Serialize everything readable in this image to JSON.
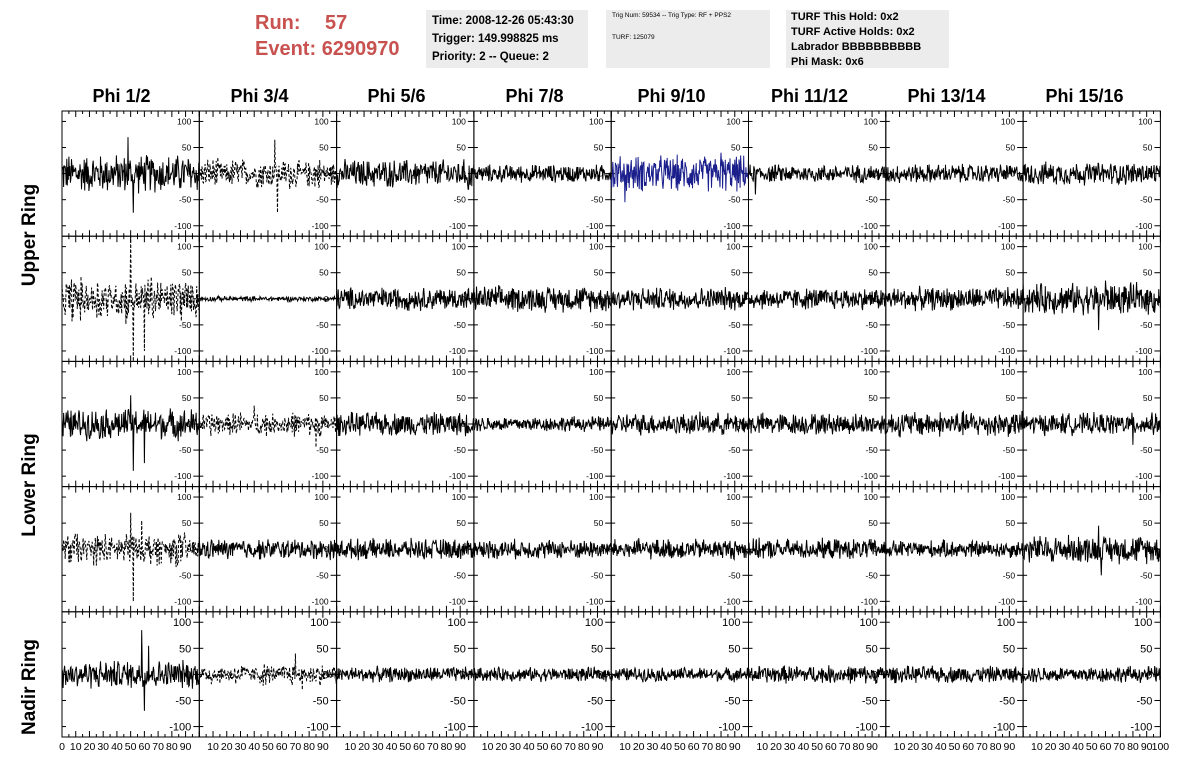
{
  "run_info": {
    "run_label": "Run:",
    "run_value": "57",
    "event_label": "Event:",
    "event_value": "6290970"
  },
  "time_box": {
    "time": "Time: 2008-12-26 05:43:30",
    "trigger": "Trigger: 149.998825 ms",
    "priority": "Priority: 2 -- Queue: 2"
  },
  "trig_box": {
    "trig": "Trig Num: 59534 -- Trig Type: RF + PPS2",
    "turf": "TURF: 125079"
  },
  "turf_box": {
    "this_hold": "TURF This Hold: 0x2",
    "active_holds": "TURF Active Holds: 0x2",
    "labrador": "Labrador BBBBBBBBBB",
    "phi_mask": "Phi Mask: 0x6"
  },
  "chart_data": {
    "type": "line",
    "columns": [
      "Phi 1/2",
      "Phi 3/4",
      "Phi 5/6",
      "Phi 7/8",
      "Phi 9/10",
      "Phi 11/12",
      "Phi 13/14",
      "Phi 15/16"
    ],
    "row_labels": [
      "Upper Ring",
      "Lower Ring",
      "Nadir Ring"
    ],
    "xlim": [
      0,
      100
    ],
    "ylim": [
      -120,
      120
    ],
    "x_ticks": [
      0,
      10,
      20,
      30,
      40,
      50,
      60,
      70,
      80,
      90,
      100
    ],
    "x_tick_labels": [
      "0",
      "10",
      "20",
      "30",
      "40",
      "50",
      "60",
      "70",
      "80",
      "90",
      "100"
    ],
    "y_ticks": [
      100,
      50,
      0,
      -50,
      -100
    ],
    "y_tick_labels": [
      "100",
      "50",
      "0",
      "-50",
      "-100"
    ],
    "panels": [
      [
        {
          "style": "solid",
          "color": "#000000",
          "amp": 30,
          "peaks": [
            [
              48,
              70
            ],
            [
              52,
              -75
            ]
          ]
        },
        {
          "style": "dashed",
          "color": "#000000",
          "amp": 20,
          "peaks": [
            [
              55,
              65
            ],
            [
              57,
              -75
            ]
          ]
        },
        {
          "style": "solid",
          "color": "#000000",
          "amp": 22,
          "peaks": [
            [
              96,
              -30
            ]
          ]
        },
        {
          "style": "solid",
          "color": "#000000",
          "amp": 14,
          "peaks": []
        },
        {
          "style": "solid",
          "color": "#1a1f8c",
          "amp": 28,
          "peaks": [
            [
              10,
              -55
            ],
            [
              80,
              40
            ]
          ]
        },
        {
          "style": "solid",
          "color": "#000000",
          "amp": 14,
          "peaks": [
            [
              5,
              -40
            ]
          ]
        },
        {
          "style": "solid",
          "color": "#000000",
          "amp": 15,
          "peaks": []
        },
        {
          "style": "solid",
          "color": "#000000",
          "amp": 18,
          "peaks": []
        }
      ],
      [
        {
          "style": "dashed",
          "color": "#000000",
          "amp": 30,
          "peaks": [
            [
              50,
              130
            ],
            [
              52,
              -120
            ],
            [
              60,
              -100
            ]
          ]
        },
        {
          "style": "solid",
          "color": "#000000",
          "amp": 4,
          "peaks": []
        },
        {
          "style": "solid",
          "color": "#000000",
          "amp": 18,
          "peaks": []
        },
        {
          "style": "solid",
          "color": "#000000",
          "amp": 20,
          "peaks": []
        },
        {
          "style": "solid",
          "color": "#000000",
          "amp": 18,
          "peaks": []
        },
        {
          "style": "solid",
          "color": "#000000",
          "amp": 17,
          "peaks": []
        },
        {
          "style": "solid",
          "color": "#000000",
          "amp": 18,
          "peaks": []
        },
        {
          "style": "solid",
          "color": "#000000",
          "amp": 24,
          "peaks": [
            [
              55,
              -60
            ],
            [
              60,
              35
            ]
          ]
        }
      ],
      [
        {
          "style": "solid",
          "color": "#000000",
          "amp": 24,
          "peaks": [
            [
              50,
              55
            ],
            [
              52,
              -90
            ],
            [
              60,
              -75
            ]
          ]
        },
        {
          "style": "dashed",
          "color": "#000000",
          "amp": 16,
          "peaks": [
            [
              40,
              35
            ],
            [
              85,
              -45
            ]
          ]
        },
        {
          "style": "solid",
          "color": "#000000",
          "amp": 18,
          "peaks": []
        },
        {
          "style": "solid",
          "color": "#000000",
          "amp": 12,
          "peaks": []
        },
        {
          "style": "solid",
          "color": "#000000",
          "amp": 17,
          "peaks": []
        },
        {
          "style": "solid",
          "color": "#000000",
          "amp": 17,
          "peaks": []
        },
        {
          "style": "solid",
          "color": "#000000",
          "amp": 20,
          "peaks": []
        },
        {
          "style": "solid",
          "color": "#000000",
          "amp": 17,
          "peaks": [
            [
              80,
              -40
            ]
          ]
        }
      ],
      [
        {
          "style": "dashed",
          "color": "#000000",
          "amp": 22,
          "peaks": [
            [
              50,
              70
            ],
            [
              52,
              -100
            ],
            [
              58,
              55
            ]
          ]
        },
        {
          "style": "solid",
          "color": "#000000",
          "amp": 16,
          "peaks": []
        },
        {
          "style": "solid",
          "color": "#000000",
          "amp": 16,
          "peaks": []
        },
        {
          "style": "solid",
          "color": "#000000",
          "amp": 15,
          "peaks": []
        },
        {
          "style": "solid",
          "color": "#000000",
          "amp": 16,
          "peaks": []
        },
        {
          "style": "solid",
          "color": "#000000",
          "amp": 16,
          "peaks": []
        },
        {
          "style": "solid",
          "color": "#000000",
          "amp": 14,
          "peaks": []
        },
        {
          "style": "solid",
          "color": "#000000",
          "amp": 22,
          "peaks": [
            [
              55,
              45
            ],
            [
              57,
              -50
            ]
          ]
        }
      ],
      [
        {
          "style": "solid",
          "color": "#000000",
          "amp": 22,
          "peaks": [
            [
              58,
              85
            ],
            [
              60,
              -70
            ],
            [
              63,
              55
            ]
          ]
        },
        {
          "style": "dashed",
          "color": "#000000",
          "amp": 14,
          "peaks": [
            [
              70,
              40
            ],
            [
              75,
              -30
            ]
          ]
        },
        {
          "style": "solid",
          "color": "#000000",
          "amp": 12,
          "peaks": []
        },
        {
          "style": "solid",
          "color": "#000000",
          "amp": 11,
          "peaks": []
        },
        {
          "style": "solid",
          "color": "#000000",
          "amp": 11,
          "peaks": []
        },
        {
          "style": "solid",
          "color": "#000000",
          "amp": 14,
          "peaks": []
        },
        {
          "style": "solid",
          "color": "#000000",
          "amp": 13,
          "peaks": []
        },
        {
          "style": "solid",
          "color": "#000000",
          "amp": 13,
          "peaks": []
        }
      ]
    ]
  }
}
